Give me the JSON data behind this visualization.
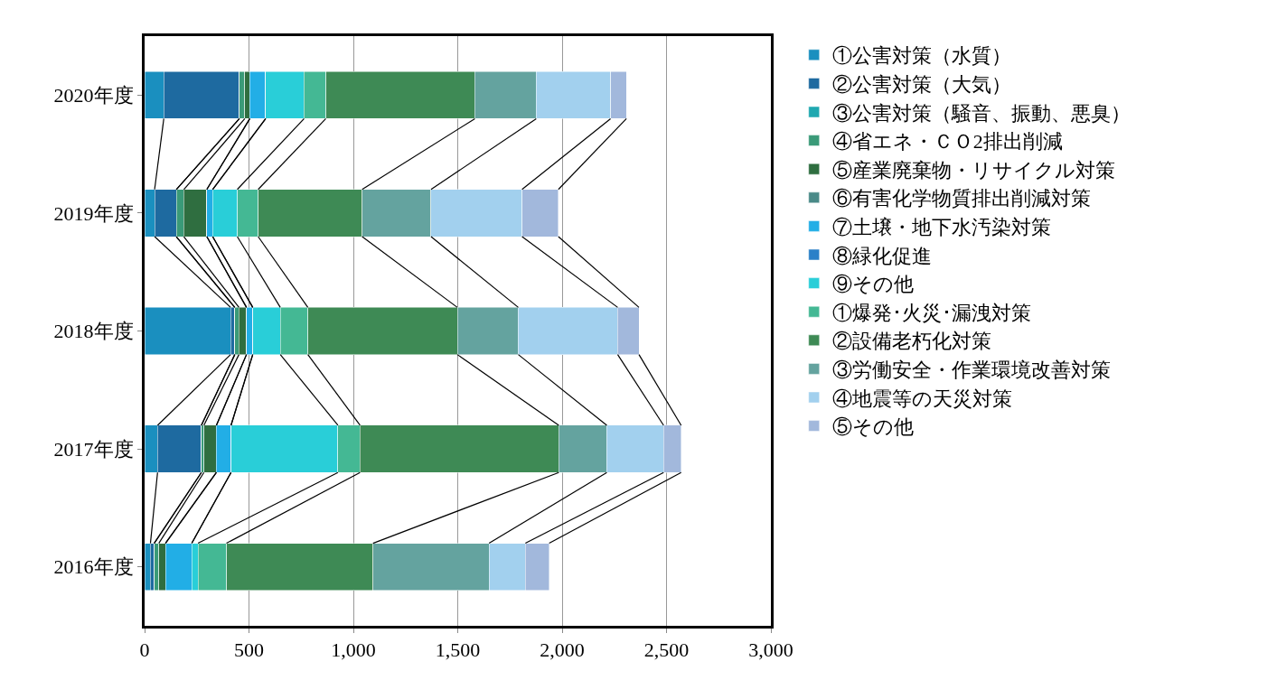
{
  "chart_data": {
    "type": "bar",
    "orientation": "horizontal",
    "stacked": true,
    "categories": [
      "2020年度",
      "2019年度",
      "2018年度",
      "2017年度",
      "2016年度"
    ],
    "series": [
      {
        "name": "①公害対策（水質）",
        "color": "#1a8fbf",
        "values": [
          92,
          48,
          412,
          62,
          28
        ]
      },
      {
        "name": "②公害対策（大気）",
        "color": "#1e6aa0",
        "values": [
          362,
          104,
          20,
          210,
          18
        ]
      },
      {
        "name": "③公害対策（騒音、振動、悪臭）",
        "color": "#1fa8b0",
        "values": [
          0,
          0,
          0,
          0,
          0
        ]
      },
      {
        "name": "④省エネ・ＣＯ2排出削減",
        "color": "#3a9a78",
        "values": [
          26,
          36,
          20,
          12,
          22
        ]
      },
      {
        "name": "⑤産業廃棄物・リサイクル対策",
        "color": "#2f6e40",
        "values": [
          24,
          110,
          36,
          60,
          32
        ]
      },
      {
        "name": "⑥有害化学物質排出削減対策",
        "color": "#4a8a88",
        "values": [
          0,
          0,
          0,
          0,
          0
        ]
      },
      {
        "name": "⑦土壌・地下水汚染対策",
        "color": "#22aee6",
        "values": [
          76,
          28,
          30,
          70,
          126
        ]
      },
      {
        "name": "⑧緑化促進",
        "color": "#2a80c8",
        "values": [
          0,
          0,
          0,
          0,
          0
        ]
      },
      {
        "name": "⑨その他",
        "color": "#29ced8",
        "values": [
          184,
          118,
          132,
          512,
          30
        ]
      },
      {
        "name": "①爆発･火災･漏洩対策",
        "color": "#44b894",
        "values": [
          104,
          100,
          132,
          106,
          136
        ]
      },
      {
        "name": "②設備老朽化対策",
        "color": "#3e8a55",
        "values": [
          714,
          498,
          716,
          952,
          702
        ]
      },
      {
        "name": "③労働安全・作業環境改善対策",
        "color": "#64a39f",
        "values": [
          294,
          330,
          292,
          230,
          556
        ]
      },
      {
        "name": "④地震等の天災対策",
        "color": "#a2d0ee",
        "values": [
          356,
          436,
          476,
          272,
          174
        ]
      },
      {
        "name": "⑤その他",
        "color": "#a2b8dc",
        "values": [
          76,
          174,
          102,
          84,
          114
        ]
      }
    ],
    "xlim": [
      0,
      3000
    ],
    "xticks": [
      {
        "value": 0,
        "label": "0"
      },
      {
        "value": 500,
        "label": "500"
      },
      {
        "value": 1000,
        "label": "1,000"
      },
      {
        "value": 1500,
        "label": "1,500"
      },
      {
        "value": 2000,
        "label": "2,000"
      },
      {
        "value": 2500,
        "label": "2,500"
      },
      {
        "value": 3000,
        "label": "3,000"
      }
    ],
    "grid": "x",
    "legend": "right"
  }
}
